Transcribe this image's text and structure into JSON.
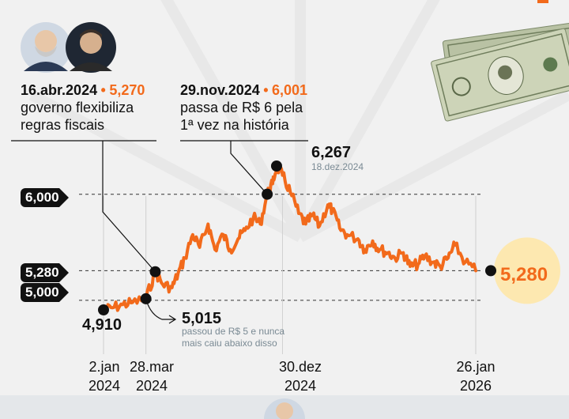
{
  "chart_data": {
    "type": "line",
    "title": "",
    "xlabel": "",
    "ylabel": "",
    "xlim": [
      "2024-01-02",
      "2026-01-26"
    ],
    "ylim": [
      4.75,
      6.4
    ],
    "grid": false,
    "series": [
      {
        "name": "",
        "color": "#f26a1b",
        "x": [
          "2024-01-02",
          "2024-01-20",
          "2024-02-10",
          "2024-03-01",
          "2024-03-28",
          "2024-04-16",
          "2024-05-01",
          "2024-05-20",
          "2024-06-01",
          "2024-06-15",
          "2024-07-01",
          "2024-07-15",
          "2024-08-01",
          "2024-08-15",
          "2024-09-01",
          "2024-09-15",
          "2024-10-01",
          "2024-10-15",
          "2024-11-01",
          "2024-11-15",
          "2024-11-29",
          "2024-12-10",
          "2024-12-18",
          "2024-12-30",
          "2025-01-15",
          "2025-02-01",
          "2025-02-15",
          "2025-03-01",
          "2025-03-15",
          "2025-04-01",
          "2025-04-10",
          "2025-04-25",
          "2025-05-10",
          "2025-06-01",
          "2025-06-15",
          "2025-07-01",
          "2025-07-15",
          "2025-08-01",
          "2025-08-15",
          "2025-09-01",
          "2025-09-15",
          "2025-10-01",
          "2025-10-15",
          "2025-11-01",
          "2025-11-15",
          "2025-12-01",
          "2025-12-15",
          "2026-01-05",
          "2026-01-26"
        ],
        "values": [
          4.91,
          4.93,
          4.96,
          4.98,
          5.015,
          5.27,
          5.15,
          5.12,
          5.25,
          5.4,
          5.62,
          5.5,
          5.72,
          5.48,
          5.62,
          5.48,
          5.58,
          5.66,
          5.78,
          5.72,
          6.001,
          6.1,
          6.267,
          6.18,
          6.02,
          5.82,
          5.72,
          5.8,
          5.7,
          5.9,
          5.85,
          5.68,
          5.62,
          5.58,
          5.48,
          5.56,
          5.48,
          5.45,
          5.4,
          5.45,
          5.32,
          5.34,
          5.42,
          5.36,
          5.32,
          5.4,
          5.52,
          5.36,
          5.28
        ]
      }
    ],
    "reference_lines": [
      {
        "value": 6.0,
        "label": "6,000"
      },
      {
        "value": 5.28,
        "label": "5,280"
      },
      {
        "value": 5.0,
        "label": "5,000"
      }
    ],
    "x_ticks": [
      {
        "x": "2024-01-02",
        "line1": "2.jan",
        "line2": "2024"
      },
      {
        "x": "2024-03-28",
        "line1": "28.mar",
        "line2": "2024"
      },
      {
        "x": "2024-12-30",
        "line1": "30.dez",
        "line2": "2024"
      },
      {
        "x": "2026-01-26",
        "line1": "26.jan",
        "line2": "2026"
      }
    ],
    "points": [
      {
        "x": "2024-01-02",
        "value": 4.91,
        "label": "4,910"
      },
      {
        "x": "2024-03-28",
        "value": 5.015,
        "label": "5,015",
        "note": "passou de R$ 5 e nunca mais caiu abaixo disso"
      },
      {
        "x": "2024-04-16",
        "value": 5.27,
        "label": "5,270"
      },
      {
        "x": "2024-11-29",
        "value": 6.001,
        "label": "6,001"
      },
      {
        "x": "2024-12-18",
        "value": 6.267,
        "label": "6,267",
        "sublabel": "18.dez.2024"
      },
      {
        "x": "2026-01-26",
        "value": 5.28,
        "label": "5,280"
      }
    ],
    "annotations": [
      {
        "date": "16.abr.2024",
        "value": "5,270",
        "text_line1": "governo flexibiliza",
        "text_line2": "regras fiscais"
      },
      {
        "date": "29.nov.2024",
        "value": "6,001",
        "text_line1": "passa de R$ 6 pela",
        "text_line2": "1ª vez na história"
      }
    ],
    "bullet": "•"
  }
}
